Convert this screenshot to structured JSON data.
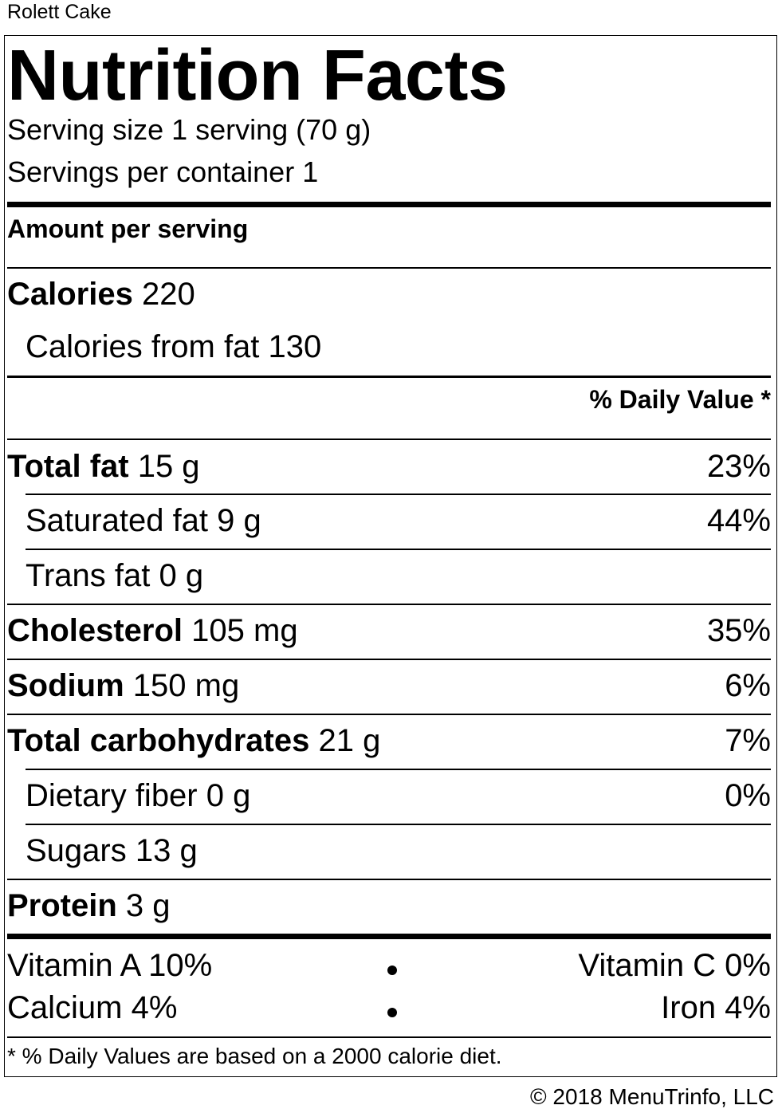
{
  "product_name": "Rolett Cake",
  "title": "Nutrition Facts",
  "serving_size": "Serving size 1 serving (70 g)",
  "servings_per_container": "Servings per container 1",
  "amount_per_serving": "Amount per serving",
  "calories": {
    "label": "Calories",
    "value": "220"
  },
  "calories_from_fat": "Calories from fat 130",
  "daily_value_header": "% Daily Value *",
  "nutrients": [
    {
      "label": "Total fat",
      "amount": "15 g",
      "dv": "23%"
    },
    {
      "label": "Saturated fat",
      "amount": "9 g",
      "dv": "44%"
    },
    {
      "label": "Trans fat",
      "amount": "0 g",
      "dv": ""
    },
    {
      "label": "Cholesterol",
      "amount": "105 mg",
      "dv": "35%"
    },
    {
      "label": "Sodium",
      "amount": "150 mg",
      "dv": "6%"
    },
    {
      "label": "Total carbohydrates",
      "amount": "21 g",
      "dv": "7%"
    },
    {
      "label": "Dietary fiber",
      "amount": "0 g",
      "dv": "0%"
    },
    {
      "label": "Sugars",
      "amount": "13 g",
      "dv": ""
    },
    {
      "label": "Protein",
      "amount": "3 g",
      "dv": ""
    }
  ],
  "vitamins": {
    "vitamin_a": "Vitamin A 10%",
    "vitamin_c": "Vitamin C 0%",
    "calcium": "Calcium 4%",
    "iron": "Iron 4%"
  },
  "footnote": "* % Daily Values are based on a 2000 calorie diet.",
  "copyright": "© 2018 MenuTrinfo, LLC"
}
